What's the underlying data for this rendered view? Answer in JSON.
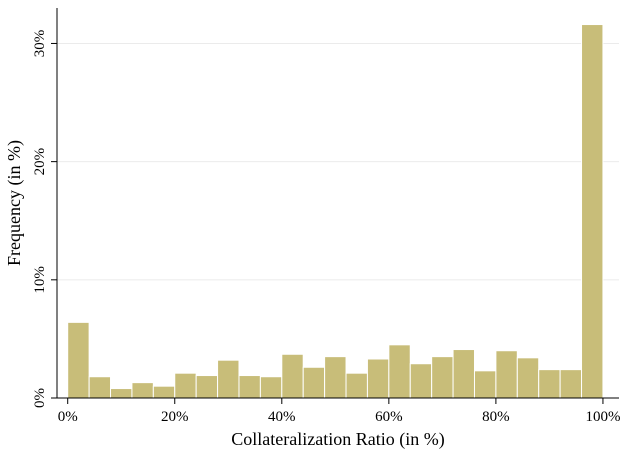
{
  "chart_data": {
    "type": "bar",
    "title": "",
    "xlabel": "Collateralization Ratio (in %)",
    "ylabel": "Frequency (in %)",
    "xlim": [
      -0.02,
      1.03
    ],
    "ylim": [
      0,
      33
    ],
    "x_ticks": [
      0,
      0.2,
      0.4,
      0.6,
      0.8,
      1.0
    ],
    "x_tick_labels": [
      "0%",
      "20%",
      "40%",
      "60%",
      "80%",
      "100%"
    ],
    "y_ticks": [
      0,
      10,
      20,
      30
    ],
    "y_tick_labels": [
      "0%",
      "10%",
      "20%",
      "30%"
    ],
    "grid": "horizontal",
    "bin_width": 0.04,
    "bins": [
      {
        "start": 0.0,
        "value": 6.4
      },
      {
        "start": 0.04,
        "value": 1.8
      },
      {
        "start": 0.08,
        "value": 0.8
      },
      {
        "start": 0.12,
        "value": 1.3
      },
      {
        "start": 0.16,
        "value": 1.0
      },
      {
        "start": 0.2,
        "value": 2.1
      },
      {
        "start": 0.24,
        "value": 1.9
      },
      {
        "start": 0.28,
        "value": 3.2
      },
      {
        "start": 0.32,
        "value": 1.9
      },
      {
        "start": 0.36,
        "value": 1.8
      },
      {
        "start": 0.4,
        "value": 3.7
      },
      {
        "start": 0.44,
        "value": 2.6
      },
      {
        "start": 0.48,
        "value": 3.5
      },
      {
        "start": 0.52,
        "value": 2.1
      },
      {
        "start": 0.56,
        "value": 3.3
      },
      {
        "start": 0.6,
        "value": 4.5
      },
      {
        "start": 0.64,
        "value": 2.9
      },
      {
        "start": 0.68,
        "value": 3.5
      },
      {
        "start": 0.72,
        "value": 4.1
      },
      {
        "start": 0.76,
        "value": 2.3
      },
      {
        "start": 0.8,
        "value": 4.0
      },
      {
        "start": 0.84,
        "value": 3.4
      },
      {
        "start": 0.88,
        "value": 2.4
      },
      {
        "start": 0.92,
        "value": 2.4
      },
      {
        "start": 0.96,
        "value": 31.6
      }
    ],
    "colors": {
      "bar_fill": "#c8bd79",
      "bar_stroke": "#ffffff",
      "grid": "#ebebeb",
      "axis": "#000000"
    }
  }
}
